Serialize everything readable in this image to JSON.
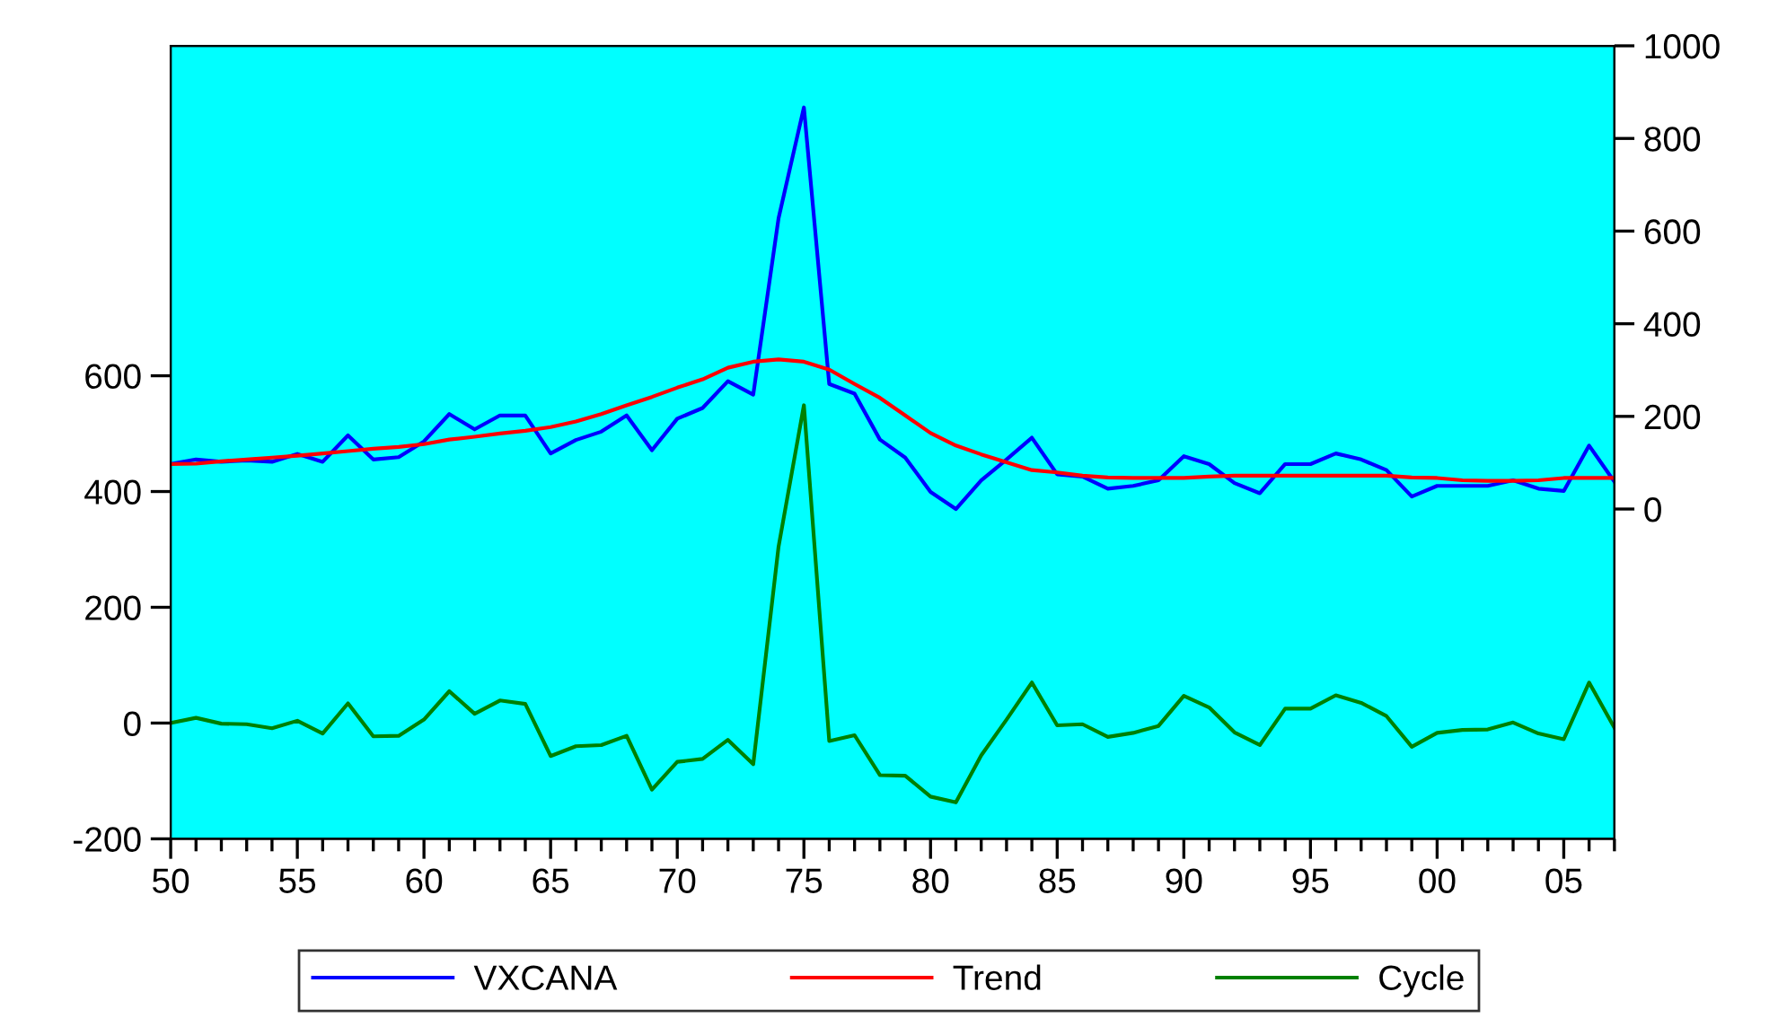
{
  "chart_data": {
    "type": "line",
    "x": [
      1950,
      1951,
      1952,
      1953,
      1954,
      1955,
      1956,
      1957,
      1958,
      1959,
      1960,
      1961,
      1962,
      1963,
      1964,
      1965,
      1966,
      1967,
      1968,
      1969,
      1970,
      1971,
      1972,
      1973,
      1974,
      1975,
      1976,
      1977,
      1978,
      1979,
      1980,
      1981,
      1982,
      1983,
      1984,
      1985,
      1986,
      1987,
      1988,
      1989,
      1990,
      1991,
      1992,
      1993,
      1994,
      1995,
      1996,
      1997,
      1998,
      1999,
      2000,
      2001,
      2002,
      2003,
      2004,
      2005,
      2006,
      2007
    ],
    "series": [
      {
        "name": "VXCANA",
        "color": "#0000ff",
        "axis": "y2",
        "values": [
          97,
          107,
          102,
          105,
          102,
          119,
          102,
          159,
          107,
          112,
          146,
          205,
          172,
          202,
          202,
          120,
          149,
          167,
          202,
          127,
          195,
          218,
          276,
          247,
          628,
          867,
          270,
          249,
          150,
          111,
          37,
          0,
          62,
          107,
          154,
          75,
          70,
          44,
          50,
          62,
          114,
          97,
          56,
          34,
          97,
          97,
          120,
          107,
          84,
          27,
          50,
          50,
          50,
          62,
          44,
          39,
          137,
          59
        ]
      },
      {
        "name": "Trend",
        "color": "#ff0000",
        "axis": "y2",
        "values": [
          97,
          98,
          103,
          107,
          111,
          115,
          120,
          125,
          130,
          134,
          140,
          150,
          156,
          163,
          169,
          177,
          189,
          205,
          224,
          242,
          262,
          280,
          305,
          318,
          323,
          318,
          301,
          270,
          240,
          202,
          164,
          137,
          118,
          101,
          84,
          79,
          72,
          68,
          67,
          67,
          67,
          70,
          72,
          72,
          72,
          72,
          72,
          72,
          72,
          68,
          67,
          62,
          61,
          61,
          62,
          67,
          67,
          67
        ]
      },
      {
        "name": "Cycle",
        "color": "#008000",
        "axis": "y",
        "values": [
          0,
          9,
          -1,
          -2,
          -9,
          4,
          -18,
          34,
          -23,
          -22,
          6,
          55,
          16,
          39,
          33,
          -57,
          -40,
          -38,
          -22,
          -115,
          -67,
          -62,
          -29,
          -71,
          305,
          549,
          -31,
          -21,
          -90,
          -91,
          -127,
          -137,
          -56,
          6,
          70,
          -4,
          -2,
          -24,
          -17,
          -5,
          47,
          27,
          -16,
          -38,
          25,
          25,
          48,
          35,
          12,
          -41,
          -17,
          -12,
          -11,
          1,
          -18,
          -28,
          70,
          -8
        ]
      }
    ],
    "xlim": [
      1950,
      2007
    ],
    "xticks": [
      {
        "value": 1950,
        "label": "50"
      },
      {
        "value": 1955,
        "label": "55"
      },
      {
        "value": 1960,
        "label": "60"
      },
      {
        "value": 1965,
        "label": "65"
      },
      {
        "value": 1970,
        "label": "70"
      },
      {
        "value": 1975,
        "label": "75"
      },
      {
        "value": 1980,
        "label": "80"
      },
      {
        "value": 1985,
        "label": "85"
      },
      {
        "value": 1990,
        "label": "90"
      },
      {
        "value": 1995,
        "label": "95"
      },
      {
        "value": 2000,
        "label": "00"
      },
      {
        "value": 2005,
        "label": "05"
      }
    ],
    "ylim": [
      -200,
      1170
    ],
    "yticks": [
      -200,
      0,
      200,
      400,
      600
    ],
    "y2lim": [
      -712,
      1000
    ],
    "y2ticks": [
      0,
      200,
      400,
      600,
      800,
      1000
    ],
    "grid": false,
    "legend": "bottom",
    "marker": "none",
    "line_style": "solid"
  }
}
